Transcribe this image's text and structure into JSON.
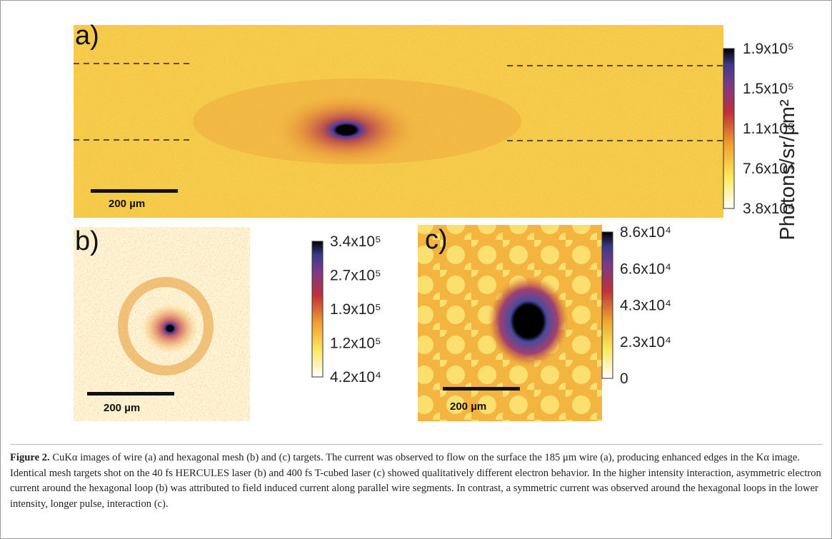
{
  "figure": {
    "panels": [
      {
        "label": "a)",
        "scalebar": "200 µm",
        "colorbar": {
          "ticks": [
            "1.9x10⁵",
            "1.5x10⁵",
            "1.1x10⁵",
            "7.6x10⁴",
            "3.8x10⁴"
          ]
        }
      },
      {
        "label": "b)",
        "scalebar": "200 µm",
        "colorbar": {
          "ticks": [
            "3.4x10⁵",
            "2.7x10⁵",
            "1.9x10⁵",
            "1.2x10⁵",
            "4.2x10⁴"
          ]
        }
      },
      {
        "label": "c)",
        "scalebar": "200 µm",
        "colorbar": {
          "ticks": [
            "8.6x10⁴",
            "6.6x10⁴",
            "4.3x10⁴",
            "2.3x10⁴",
            "0"
          ]
        }
      }
    ],
    "colorbar_label": "Photons/sr/µm²",
    "caption": {
      "label": "Figure 2.",
      "text": "CuKα images of wire (a) and hexagonal mesh (b) and (c) targets. The current was observed to flow on the surface the 185 μm wire (a), producing enhanced edges in the Kα image. Identical mesh targets shot on the 40 fs HERCULES laser (b) and 400 fs T-cubed laser (c) showed qualitatively different electron behavior. In the higher intensity interaction, asymmetric electron current around the hexagonal loop (b) was attributed to field induced current along parallel wire segments. In contrast, a symmetric current was observed around the hexagonal loops in the lower intensity, longer pulse, interaction (c)."
    }
  }
}
